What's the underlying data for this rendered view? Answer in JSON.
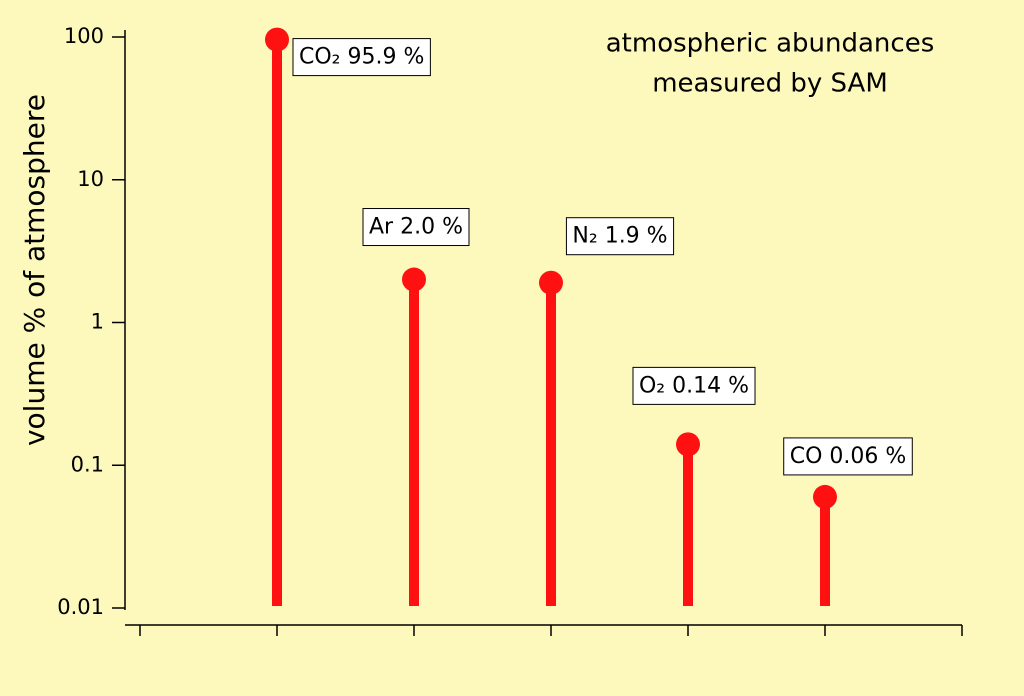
{
  "chart_data": {
    "type": "lollipop",
    "title": [
      "atmospheric abundances",
      "measured by SAM"
    ],
    "ylabel": "volume % of atmosphere",
    "categories": [
      null,
      null,
      null,
      null,
      null
    ],
    "values": [
      95.9,
      2.0,
      1.9,
      0.14,
      0.06
    ],
    "value_labels": [
      "CO₂ 95.9 %",
      "Ar 2.0 %",
      "N₂ 1.9 %",
      "O₂ 0.14 %",
      "CO 0.06 %"
    ],
    "color": "#ff1111",
    "log_y": true,
    "ylim": [
      0.01,
      100
    ],
    "yticks": [
      0.01,
      0.1,
      1,
      10,
      100
    ]
  }
}
